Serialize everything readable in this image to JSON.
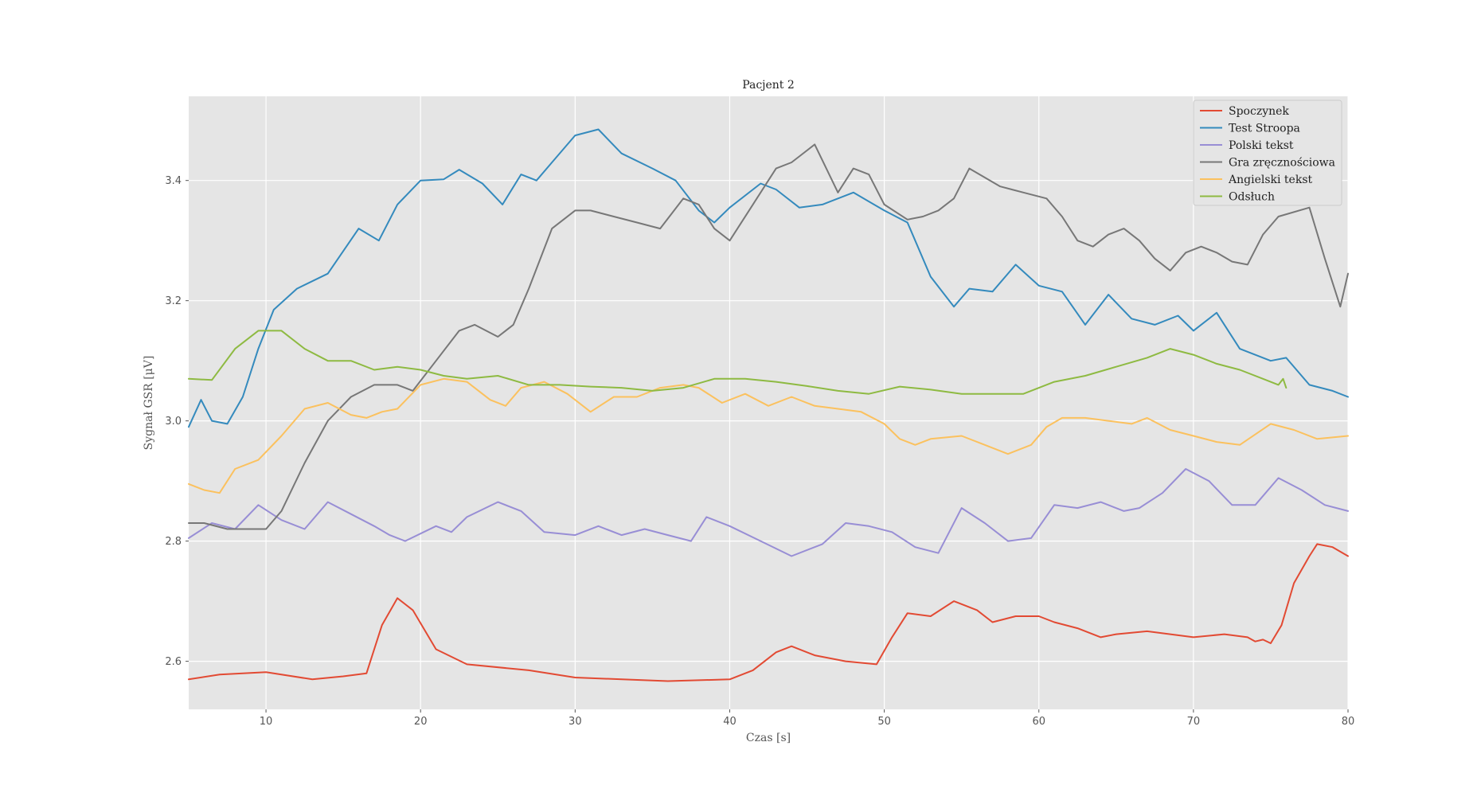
{
  "chart_data": {
    "type": "line",
    "title": "Pacjent 2",
    "xlabel": "Czas [s]",
    "ylabel": "Sygnał GSR [μV]",
    "xlim": [
      5,
      80
    ],
    "ylim": [
      2.52,
      3.54
    ],
    "xticks": [
      10,
      20,
      30,
      40,
      50,
      60,
      70,
      80
    ],
    "yticks": [
      2.6,
      2.8,
      3.0,
      3.2,
      3.4
    ],
    "xtick_labels": [
      "10",
      "20",
      "30",
      "40",
      "50",
      "60",
      "70",
      "80"
    ],
    "ytick_labels": [
      "2.6",
      "2.8",
      "3.0",
      "3.2",
      "3.4"
    ],
    "grid": true,
    "legend_position": "top-right",
    "background": "#e5e5e5",
    "series": [
      {
        "name": "Spoczynek",
        "color": "#e24a33",
        "x": [
          5,
          7,
          10,
          13,
          15,
          16.5,
          17.5,
          18.5,
          19.5,
          21,
          23,
          27,
          30,
          36,
          40,
          41.5,
          43,
          44,
          45.5,
          47.5,
          49.5,
          50.5,
          51.5,
          53,
          54.5,
          56,
          57,
          58.5,
          60,
          61,
          62.5,
          64,
          65,
          67,
          70,
          72,
          73.5,
          74,
          74.5,
          75,
          75.7,
          76.5,
          77.5,
          78,
          79,
          80
        ],
        "y": [
          2.57,
          2.578,
          2.582,
          2.57,
          2.575,
          2.58,
          2.66,
          2.705,
          2.685,
          2.62,
          2.595,
          2.585,
          2.573,
          2.567,
          2.57,
          2.585,
          2.615,
          2.625,
          2.61,
          2.6,
          2.595,
          2.64,
          2.68,
          2.675,
          2.7,
          2.685,
          2.665,
          2.675,
          2.675,
          2.665,
          2.655,
          2.64,
          2.645,
          2.65,
          2.64,
          2.645,
          2.64,
          2.633,
          2.636,
          2.63,
          2.66,
          2.73,
          2.775,
          2.795,
          2.79,
          2.775
        ]
      },
      {
        "name": "Test Stroopa",
        "color": "#348abd",
        "x": [
          5,
          5.8,
          6.5,
          7.5,
          8.5,
          9.5,
          10.5,
          12,
          14,
          16,
          17.3,
          18.5,
          20,
          21.5,
          22.5,
          24,
          25.3,
          26.5,
          27.5,
          28.5,
          30,
          31.5,
          33,
          35,
          36.5,
          38,
          39,
          40,
          42,
          43,
          44.5,
          46,
          48,
          50,
          51.5,
          53,
          54.5,
          55.5,
          57,
          58.5,
          60,
          61.5,
          63,
          64.5,
          66,
          67.5,
          69,
          70,
          71.5,
          73,
          75,
          76,
          77.5,
          79,
          80
        ],
        "y": [
          2.99,
          3.035,
          3.0,
          2.995,
          3.04,
          3.12,
          3.185,
          3.22,
          3.245,
          3.32,
          3.3,
          3.36,
          3.4,
          3.402,
          3.418,
          3.395,
          3.36,
          3.41,
          3.4,
          3.43,
          3.475,
          3.485,
          3.445,
          3.42,
          3.4,
          3.35,
          3.33,
          3.355,
          3.395,
          3.385,
          3.355,
          3.36,
          3.38,
          3.35,
          3.33,
          3.24,
          3.19,
          3.22,
          3.215,
          3.26,
          3.225,
          3.215,
          3.16,
          3.21,
          3.17,
          3.16,
          3.175,
          3.15,
          3.18,
          3.12,
          3.1,
          3.105,
          3.06,
          3.05,
          3.04
        ]
      },
      {
        "name": "Polski tekst",
        "color": "#988ed5",
        "x": [
          5,
          6.5,
          8,
          9.5,
          11,
          12.5,
          14,
          15.5,
          17,
          18,
          19,
          21,
          22,
          23,
          25,
          26.5,
          28,
          30,
          31.5,
          33,
          34.5,
          36,
          37.5,
          38.5,
          40,
          42,
          44,
          46,
          47.5,
          49,
          50.5,
          52,
          53.5,
          55,
          56.5,
          58,
          59.5,
          61,
          62.5,
          64,
          65.5,
          66.5,
          68,
          69.5,
          71,
          72.5,
          74,
          75.5,
          77,
          78.5,
          80
        ],
        "y": [
          2.805,
          2.83,
          2.82,
          2.86,
          2.835,
          2.82,
          2.865,
          2.845,
          2.825,
          2.81,
          2.8,
          2.825,
          2.815,
          2.84,
          2.865,
          2.85,
          2.815,
          2.81,
          2.825,
          2.81,
          2.82,
          2.81,
          2.8,
          2.84,
          2.825,
          2.8,
          2.775,
          2.795,
          2.83,
          2.825,
          2.815,
          2.79,
          2.78,
          2.855,
          2.83,
          2.8,
          2.805,
          2.86,
          2.855,
          2.865,
          2.85,
          2.855,
          2.88,
          2.92,
          2.9,
          2.86,
          2.86,
          2.905,
          2.885,
          2.86,
          2.85
        ]
      },
      {
        "name": "Gra zręcznościowa",
        "color": "#777777",
        "x": [
          5,
          6,
          7.5,
          9,
          10,
          11,
          12.5,
          14,
          15.5,
          17,
          18.5,
          19.5,
          21,
          22.5,
          23.5,
          25,
          26,
          27,
          28.5,
          30,
          31,
          32.5,
          34,
          35.5,
          37,
          38,
          39,
          40,
          41.5,
          43,
          44,
          44.5,
          45.5,
          47,
          48,
          49,
          50,
          51.5,
          52.5,
          53.5,
          54.5,
          55.5,
          57.5,
          59,
          60.5,
          61.5,
          62.5,
          63.5,
          64.5,
          65.5,
          66.5,
          67.5,
          68.5,
          69.5,
          70.5,
          71.5,
          72.5,
          73.5,
          74.5,
          75.5,
          77.5,
          78.5,
          79.5,
          80
        ],
        "y": [
          2.83,
          2.83,
          2.82,
          2.82,
          2.82,
          2.85,
          2.93,
          3.0,
          3.04,
          3.06,
          3.06,
          3.05,
          3.1,
          3.15,
          3.16,
          3.14,
          3.16,
          3.22,
          3.32,
          3.35,
          3.35,
          3.34,
          3.33,
          3.32,
          3.37,
          3.36,
          3.32,
          3.3,
          3.36,
          3.42,
          3.43,
          3.44,
          3.46,
          3.38,
          3.42,
          3.41,
          3.36,
          3.335,
          3.34,
          3.35,
          3.37,
          3.42,
          3.39,
          3.38,
          3.37,
          3.34,
          3.3,
          3.29,
          3.31,
          3.32,
          3.3,
          3.27,
          3.25,
          3.28,
          3.29,
          3.28,
          3.265,
          3.26,
          3.31,
          3.34,
          3.355,
          3.27,
          3.19,
          3.245
        ]
      },
      {
        "name": "Angielski tekst",
        "color": "#fbc15e",
        "x": [
          5,
          6,
          7,
          8,
          9.5,
          11,
          12.5,
          14,
          15.5,
          16.5,
          17.5,
          18.5,
          20,
          21.5,
          23,
          24.5,
          25.5,
          26.5,
          28,
          29.5,
          31,
          32.5,
          34,
          35.5,
          37,
          38,
          39.5,
          41,
          42.5,
          44,
          45.5,
          47,
          48.5,
          50,
          51,
          52,
          53,
          55,
          56.5,
          58,
          59.5,
          60.5,
          61.5,
          63,
          64.5,
          66,
          67,
          68.5,
          70,
          71.5,
          73,
          75,
          76.5,
          78,
          80
        ],
        "y": [
          2.895,
          2.885,
          2.88,
          2.92,
          2.935,
          2.975,
          3.02,
          3.03,
          3.01,
          3.005,
          3.015,
          3.02,
          3.06,
          3.07,
          3.065,
          3.035,
          3.025,
          3.055,
          3.065,
          3.045,
          3.015,
          3.04,
          3.04,
          3.055,
          3.06,
          3.055,
          3.03,
          3.045,
          3.025,
          3.04,
          3.025,
          3.02,
          3.015,
          2.995,
          2.97,
          2.96,
          2.97,
          2.975,
          2.96,
          2.945,
          2.96,
          2.99,
          3.005,
          3.005,
          3.0,
          2.995,
          3.005,
          2.985,
          2.975,
          2.965,
          2.96,
          2.995,
          2.985,
          2.97,
          2.975
        ]
      },
      {
        "name": "Odsłuch",
        "color": "#8eba42",
        "x": [
          5,
          6.5,
          8,
          9.5,
          11,
          12.5,
          14,
          15.5,
          17,
          18.5,
          20,
          21.5,
          23,
          25,
          27,
          29,
          31,
          33,
          35,
          37,
          39,
          41,
          43,
          45,
          47,
          49,
          51,
          53,
          55,
          57,
          59,
          61,
          63,
          65,
          67,
          68.5,
          70,
          71.5,
          73,
          74.5,
          75.5,
          75.8,
          76
        ],
        "y": [
          3.07,
          3.068,
          3.12,
          3.15,
          3.15,
          3.12,
          3.1,
          3.1,
          3.085,
          3.09,
          3.085,
          3.075,
          3.07,
          3.075,
          3.06,
          3.06,
          3.057,
          3.055,
          3.05,
          3.055,
          3.07,
          3.07,
          3.065,
          3.058,
          3.05,
          3.045,
          3.057,
          3.052,
          3.045,
          3.045,
          3.045,
          3.065,
          3.075,
          3.09,
          3.105,
          3.12,
          3.11,
          3.095,
          3.085,
          3.07,
          3.06,
          3.07,
          3.055
        ]
      }
    ]
  }
}
